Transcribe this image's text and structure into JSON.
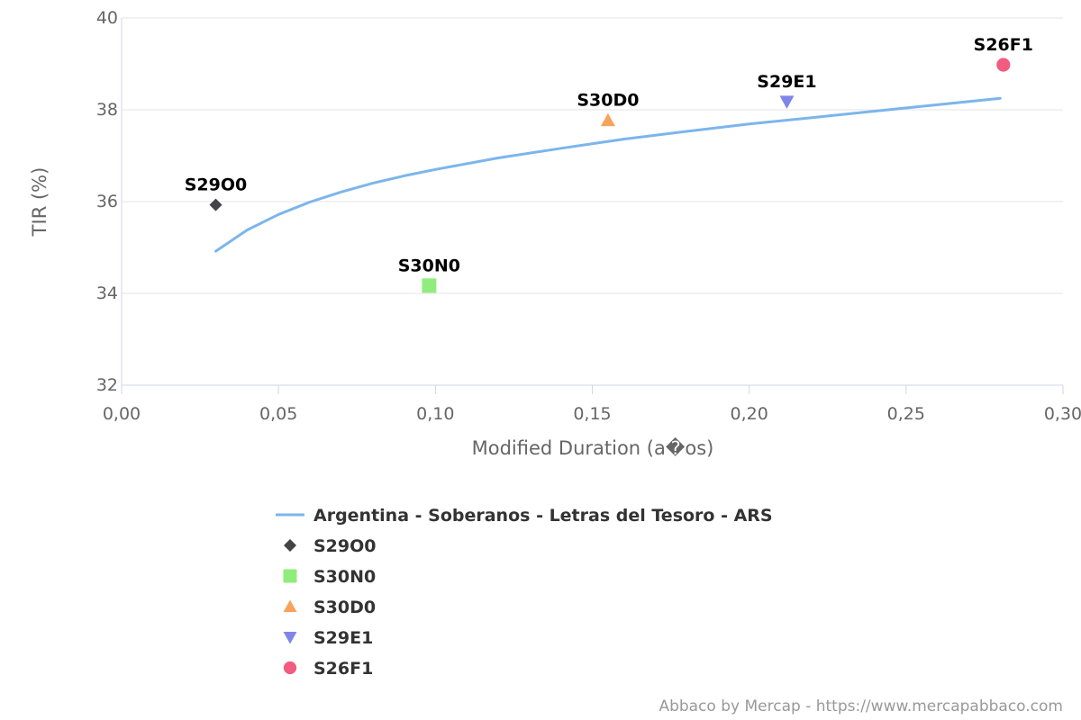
{
  "chart_data": {
    "type": "scatter",
    "xlabel": "Modified Duration (a�os)",
    "ylabel": "TIR (%)",
    "xlim": [
      0,
      0.3
    ],
    "ylim": [
      32,
      40
    ],
    "x_ticks": [
      "0,00",
      "0,05",
      "0,10",
      "0,15",
      "0,20",
      "0,25",
      "0,30"
    ],
    "x_tick_values": [
      0,
      0.05,
      0.1,
      0.15,
      0.2,
      0.25,
      0.3
    ],
    "y_ticks": [
      "32",
      "34",
      "36",
      "38",
      "40"
    ],
    "y_tick_values": [
      32,
      34,
      36,
      38,
      40
    ],
    "grid": "horizontal",
    "legend_position": "bottom",
    "series": [
      {
        "name": "Argentina - Soberanos - Letras del Tesoro - ARS",
        "kind": "line",
        "color": "#7cb5ec",
        "x": [
          0.03,
          0.04,
          0.05,
          0.06,
          0.07,
          0.08,
          0.09,
          0.1,
          0.12,
          0.14,
          0.16,
          0.18,
          0.2,
          0.22,
          0.24,
          0.26,
          0.28
        ],
        "y": [
          34.92,
          35.38,
          35.72,
          35.99,
          36.21,
          36.4,
          36.56,
          36.7,
          36.95,
          37.16,
          37.36,
          37.53,
          37.69,
          37.83,
          37.97,
          38.11,
          38.25
        ]
      },
      {
        "name": "S29O0",
        "kind": "point",
        "marker": "diamond",
        "color": "#434348",
        "x": [
          0.03
        ],
        "y": [
          35.93
        ],
        "label": "S29O0"
      },
      {
        "name": "S30N0",
        "kind": "point",
        "marker": "square",
        "color": "#90ed7d",
        "x": [
          0.098
        ],
        "y": [
          34.17
        ],
        "label": "S30N0"
      },
      {
        "name": "S30D0",
        "kind": "point",
        "marker": "triangle",
        "color": "#f7a35c",
        "x": [
          0.155
        ],
        "y": [
          37.77
        ],
        "label": "S30D0"
      },
      {
        "name": "S29E1",
        "kind": "point",
        "marker": "triangle-down",
        "color": "#8085e9",
        "x": [
          0.212
        ],
        "y": [
          38.18
        ],
        "label": "S29E1"
      },
      {
        "name": "S26F1",
        "kind": "point",
        "marker": "circle",
        "color": "#f15c80",
        "x": [
          0.281
        ],
        "y": [
          38.98
        ],
        "label": "S26F1"
      }
    ]
  },
  "credits": "Abbaco by Mercap - https://www.mercapabbaco.com"
}
